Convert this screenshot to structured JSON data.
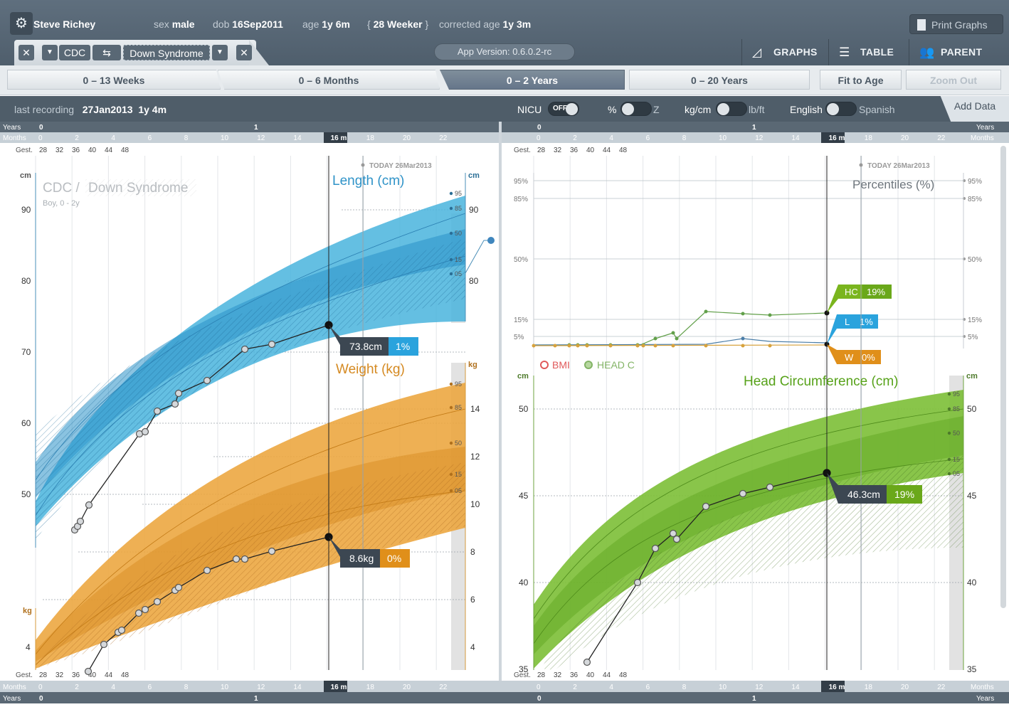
{
  "patient": {
    "name": "Steve Richey",
    "sex_label": "sex",
    "sex": "male",
    "dob_label": "dob",
    "dob": "16Sep2011",
    "age_label": "age",
    "age": "1y 6m",
    "weeker_open": "{",
    "weeker": "28 Weeker",
    "weeker_close": "}",
    "corrected_label": "corrected age",
    "corrected": "1y 3m"
  },
  "toolbar": {
    "print_label": "Print Graphs",
    "close_symbol": "✕",
    "dropdown_symbol": "▼",
    "source_primary": "CDC",
    "swap_symbol": "⇆",
    "source_secondary": "Down Syndrome",
    "version": "App Version: 0.6.0.2-rc",
    "views": [
      {
        "label": "GRAPHS",
        "icon": "graph-icon"
      },
      {
        "label": "TABLE",
        "icon": "table-icon"
      },
      {
        "label": "PARENT",
        "icon": "parent-icon"
      }
    ]
  },
  "ranges": {
    "tabs": [
      "0 – 13 Weeks",
      "0 – 6 Months",
      "0 – 2 Years",
      "0 – 20 Years"
    ],
    "active_index": 2,
    "fit_label": "Fit to Age",
    "zoom_label": "Zoom Out"
  },
  "status": {
    "last_label": "last recording",
    "last_date": "27Jan2013",
    "last_age": "1y 4m",
    "nicu_label": "NICU",
    "nicu_state": "OFF",
    "pct_label": "%",
    "z_label": "Z",
    "metric_label": "kg/cm",
    "imperial_label": "lb/ft",
    "english_label": "English",
    "spanish_label": "Spanish",
    "add_data_label": "Add Data"
  },
  "axis": {
    "years_label": "Years",
    "months_label": "Months",
    "gest_label": "Gest.",
    "years_ticks": [
      "0",
      "1"
    ],
    "month_ticks": [
      "0",
      "2",
      "4",
      "6",
      "8",
      "10",
      "12",
      "14",
      "16 m",
      "18",
      "20",
      "22"
    ],
    "gest_ticks": [
      "28",
      "32",
      "36",
      "40",
      "44",
      "48"
    ]
  },
  "today_label": "TODAY 26Mar2013",
  "left_chart": {
    "source_title": "CDC /",
    "source_title_2": "Down Syndrome",
    "subtitle": "Boy, 0 - 2y",
    "length_title": "Length (cm)",
    "length_unit": "cm",
    "length_ticks": [
      "90",
      "80",
      "70",
      "60",
      "50"
    ],
    "length_right_ticks": [
      "90",
      "80"
    ],
    "pct_labels": [
      "95",
      "85",
      "50",
      "15",
      "05"
    ],
    "length_value": "73.8cm",
    "length_pct": "1%",
    "weight_title": "Weight (kg)",
    "weight_unit": "kg",
    "weight_ticks": [
      "14",
      "12",
      "10",
      "8",
      "6",
      "4"
    ],
    "weight_left_ticks": [
      "4"
    ],
    "weight_value": "8.6kg",
    "weight_pct": "0%"
  },
  "right_chart": {
    "percentiles_title": "Percentiles (%)",
    "pct_ticks": [
      "95%",
      "85%",
      "50%",
      "15%",
      "5%"
    ],
    "tag_hc": "HC",
    "tag_hc_val": "19%",
    "tag_l": "L",
    "tag_l_val": "1%",
    "tag_w": "W",
    "tag_w_val": "0%",
    "legend_bmi": "BMI",
    "legend_headc": "HEAD C",
    "hc_title": "Head Circumference (cm)",
    "hc_unit": "cm",
    "hc_ticks": [
      "50",
      "45",
      "40",
      "35"
    ],
    "hc_value": "46.3cm",
    "hc_pct": "19%"
  },
  "colors": {
    "length": "#49b4dd",
    "weight": "#eca53c",
    "hc": "#7cbf36",
    "chrome": "#56646f",
    "bmi": "#e0595a"
  }
}
